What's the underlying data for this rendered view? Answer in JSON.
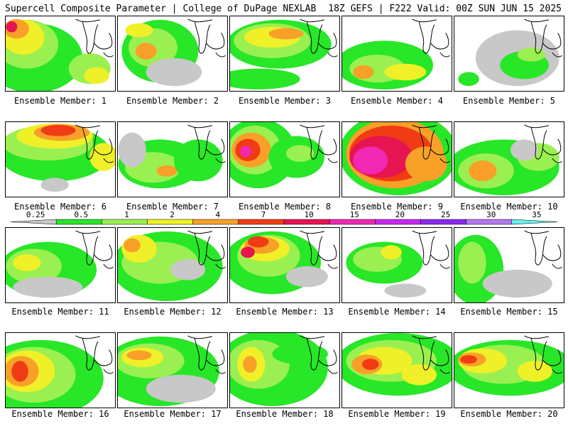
{
  "header": {
    "title_left": "Supercell Composite Parameter | College of DuPage NEXLAB",
    "title_right": "18Z GEFS | F222 Valid: 00Z SUN JUN 15 2025"
  },
  "legend": {
    "ticks": [
      "0.25",
      "0.5",
      "1",
      "2",
      "4",
      "7",
      "10",
      "15",
      "20",
      "25",
      "30",
      "35"
    ],
    "colors": [
      "#c8c8c8",
      "#28e628",
      "#9af050",
      "#f0f028",
      "#f8a028",
      "#f03c14",
      "#e61450",
      "#f028b4",
      "#c828f0",
      "#8c28f0",
      "#b478f0",
      "#64f0f0"
    ]
  },
  "members": [
    {
      "label": "Ensemble Member: 1"
    },
    {
      "label": "Ensemble Member: 2"
    },
    {
      "label": "Ensemble Member: 3"
    },
    {
      "label": "Ensemble Member: 4"
    },
    {
      "label": "Ensemble Member: 5"
    },
    {
      "label": "Ensemble Member: 6"
    },
    {
      "label": "Ensemble Member: 7"
    },
    {
      "label": "Ensemble Member: 8"
    },
    {
      "label": "Ensemble Member: 9"
    },
    {
      "label": "Ensemble Member: 10"
    },
    {
      "label": "Ensemble Member: 11"
    },
    {
      "label": "Ensemble Member: 12"
    },
    {
      "label": "Ensemble Member: 13"
    },
    {
      "label": "Ensemble Member: 14"
    },
    {
      "label": "Ensemble Member: 15"
    },
    {
      "label": "Ensemble Member: 16"
    },
    {
      "label": "Ensemble Member: 17"
    },
    {
      "label": "Ensemble Member: 18"
    },
    {
      "label": "Ensemble Member: 19"
    },
    {
      "label": "Ensemble Member: 20"
    }
  ]
}
